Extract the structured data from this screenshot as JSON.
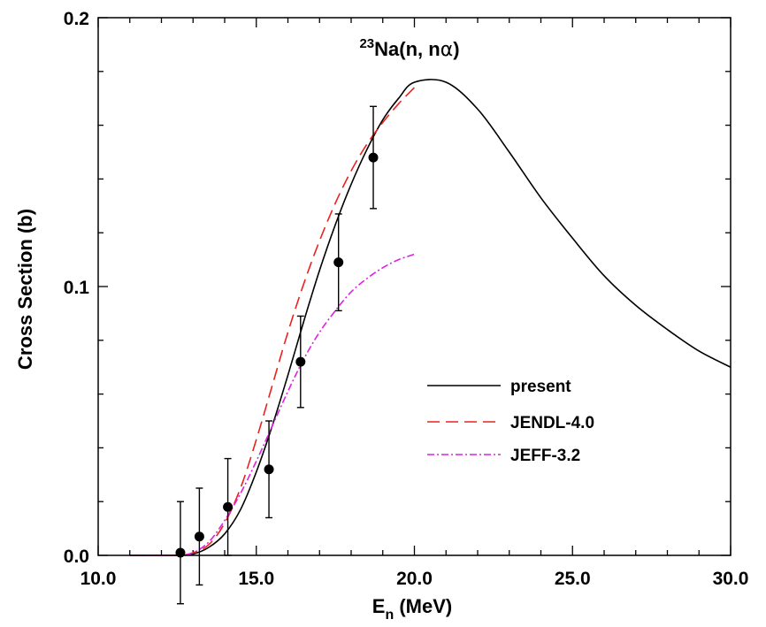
{
  "chart_data": {
    "type": "line",
    "title_pre": "23",
    "title_main": "Na(n, n",
    "title_symbol": "α",
    "title_end": ")",
    "xlabel": "E",
    "xlabel_sub": "n",
    "xlabel_unit": " (MeV)",
    "ylabel": "Cross Section (b)",
    "xlim": [
      10.0,
      30.0
    ],
    "ylim": [
      0.0,
      0.2
    ],
    "x_ticks": [
      10.0,
      15.0,
      20.0,
      25.0,
      30.0
    ],
    "x_tick_labels": [
      "10.0",
      "15.0",
      "20.0",
      "25.0",
      "30.0"
    ],
    "y_ticks": [
      0.0,
      0.1,
      0.2
    ],
    "y_tick_labels": [
      "0.0",
      "0.1",
      "0.2"
    ],
    "x_minor_step": 1.0,
    "y_minor_step": 0.02,
    "legend_position": "center-right",
    "series": [
      {
        "name": "present",
        "style": "solid",
        "color": "#000000",
        "x": [
          11.0,
          12.5,
          13.0,
          13.5,
          14.0,
          14.5,
          15.0,
          15.5,
          16.0,
          16.5,
          17.0,
          17.5,
          18.0,
          18.5,
          19.0,
          19.5,
          20.0,
          21.0,
          22.0,
          23.0,
          24.0,
          25.0,
          26.0,
          27.0,
          28.0,
          29.0,
          30.0
        ],
        "y": [
          0.0,
          0.0,
          0.0005,
          0.003,
          0.008,
          0.017,
          0.031,
          0.048,
          0.067,
          0.087,
          0.106,
          0.123,
          0.138,
          0.151,
          0.162,
          0.17,
          0.176,
          0.176,
          0.166,
          0.15,
          0.133,
          0.118,
          0.104,
          0.093,
          0.084,
          0.076,
          0.07
        ]
      },
      {
        "name": "JENDL-4.0",
        "style": "dashed",
        "color": "#e8231f",
        "x": [
          11.0,
          12.5,
          13.0,
          13.5,
          14.0,
          14.5,
          15.0,
          15.5,
          16.0,
          16.5,
          17.0,
          17.5,
          18.0,
          18.5,
          19.0,
          19.5,
          20.0
        ],
        "y": [
          0.0,
          0.0,
          0.001,
          0.004,
          0.012,
          0.025,
          0.043,
          0.063,
          0.083,
          0.101,
          0.117,
          0.131,
          0.143,
          0.153,
          0.161,
          0.168,
          0.174
        ]
      },
      {
        "name": "JEFF-3.2",
        "style": "dashdot",
        "color": "#e020e0",
        "x": [
          11.0,
          12.5,
          13.0,
          13.5,
          14.0,
          14.5,
          15.0,
          15.5,
          16.0,
          16.5,
          17.0,
          17.5,
          18.0,
          18.5,
          19.0,
          19.5,
          20.0
        ],
        "y": [
          0.0,
          0.0,
          0.001,
          0.005,
          0.013,
          0.023,
          0.035,
          0.048,
          0.061,
          0.073,
          0.083,
          0.091,
          0.098,
          0.103,
          0.107,
          0.11,
          0.112
        ]
      }
    ],
    "points": [
      {
        "x": 12.6,
        "y": 0.001,
        "err": 0.019
      },
      {
        "x": 13.2,
        "y": 0.007,
        "err": 0.018
      },
      {
        "x": 14.1,
        "y": 0.018,
        "err": 0.018
      },
      {
        "x": 15.4,
        "y": 0.032,
        "err": 0.018
      },
      {
        "x": 16.4,
        "y": 0.072,
        "err": 0.017
      },
      {
        "x": 17.6,
        "y": 0.109,
        "err": 0.018
      },
      {
        "x": 18.7,
        "y": 0.148,
        "err": 0.019
      }
    ]
  }
}
